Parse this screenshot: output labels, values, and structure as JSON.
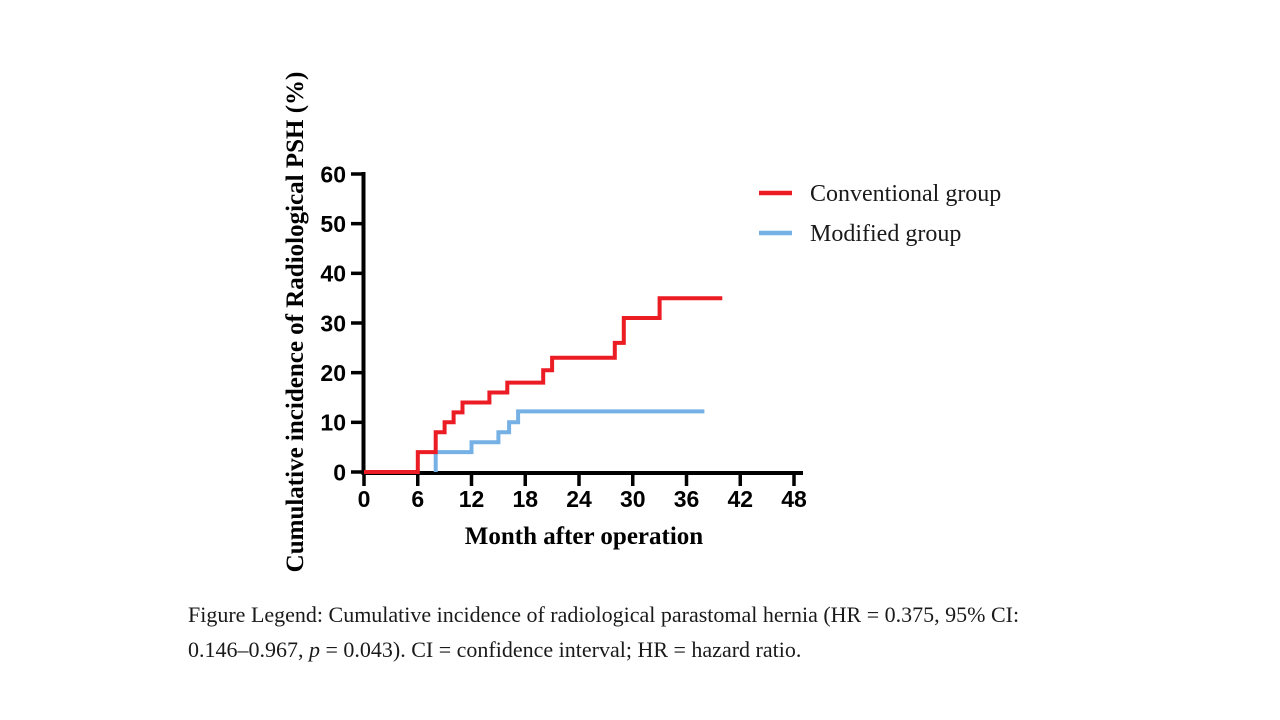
{
  "chart_data": {
    "type": "line",
    "subtype": "cumulative-incidence-step-curve",
    "title": "",
    "xlabel": "Month after operation",
    "ylabel": "Cumulative incidence of Radiological PSH (%)",
    "xlim": [
      0,
      48
    ],
    "ylim": [
      0,
      60
    ],
    "x_ticks": [
      0,
      6,
      12,
      18,
      24,
      30,
      36,
      42,
      48
    ],
    "y_ticks": [
      0,
      10,
      20,
      30,
      40,
      50,
      60
    ],
    "grid": false,
    "legend_position": "upper right",
    "axis_color": "#000000",
    "series": [
      {
        "name": "Conventional group",
        "color": "#EC1C24",
        "points": [
          [
            0,
            0
          ],
          [
            6,
            0
          ],
          [
            6,
            4
          ],
          [
            8,
            4
          ],
          [
            8,
            8
          ],
          [
            9,
            8
          ],
          [
            9,
            10
          ],
          [
            10,
            10
          ],
          [
            10,
            12
          ],
          [
            11,
            12
          ],
          [
            11,
            14
          ],
          [
            14,
            14
          ],
          [
            14,
            16
          ],
          [
            16,
            16
          ],
          [
            16,
            18
          ],
          [
            20,
            18
          ],
          [
            20,
            20.5
          ],
          [
            21,
            20.5
          ],
          [
            21,
            23
          ],
          [
            28,
            23
          ],
          [
            28,
            26
          ],
          [
            29,
            26
          ],
          [
            29,
            31
          ],
          [
            33,
            31
          ],
          [
            33,
            35
          ],
          [
            40,
            35
          ]
        ]
      },
      {
        "name": "Modified group",
        "color": "#76B1E5",
        "points": [
          [
            8,
            0
          ],
          [
            8,
            4
          ],
          [
            12,
            4
          ],
          [
            12,
            6
          ],
          [
            15,
            6
          ],
          [
            15,
            8
          ],
          [
            16.2,
            8
          ],
          [
            16.2,
            10
          ],
          [
            17.2,
            10
          ],
          [
            17.2,
            12.2
          ],
          [
            38,
            12.2
          ]
        ]
      }
    ]
  },
  "caption": {
    "line1": "Figure Legend: Cumulative incidence of radiological parastomal hernia (HR = 0.375, 95% CI:",
    "line2_pre": "0.146–0.967, ",
    "line2_italic": "p",
    "line2_post": " = 0.043). CI = confidence interval; HR = hazard ratio."
  }
}
